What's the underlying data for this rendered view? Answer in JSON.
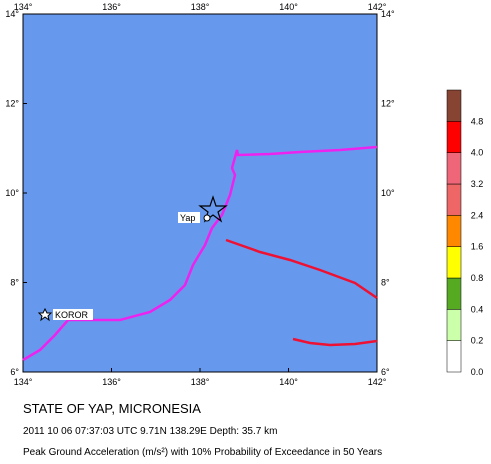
{
  "map": {
    "x_tick_labels": [
      "134°",
      "136°",
      "138°",
      "140°",
      "142°"
    ],
    "y_tick_labels": [
      "6°",
      "8°",
      "10°",
      "12°",
      "14°"
    ],
    "places": {
      "koror": "KOROR",
      "yap": "Yap"
    },
    "legend": {
      "labels": [
        "0.0",
        "0.2",
        "0.4",
        "0.8",
        "1.6",
        "2.4",
        "3.2",
        "4.0",
        "4.8"
      ],
      "colors": [
        "#ffffff",
        "#ccffaa",
        "#55aa22",
        "#ffff00",
        "#ff8800",
        "#ee6666",
        "#ee6677",
        "#ff0000",
        "#884433"
      ]
    }
  },
  "caption": {
    "title": "STATE OF YAP, MICRONESIA",
    "event": "2011 10 06 07:37:03 UTC 9.71N 138.29E Depth: 35.7 km",
    "description": "Peak Ground Acceleration (m/s²) with 10% Probability of Exceedance in 50 Years"
  }
}
